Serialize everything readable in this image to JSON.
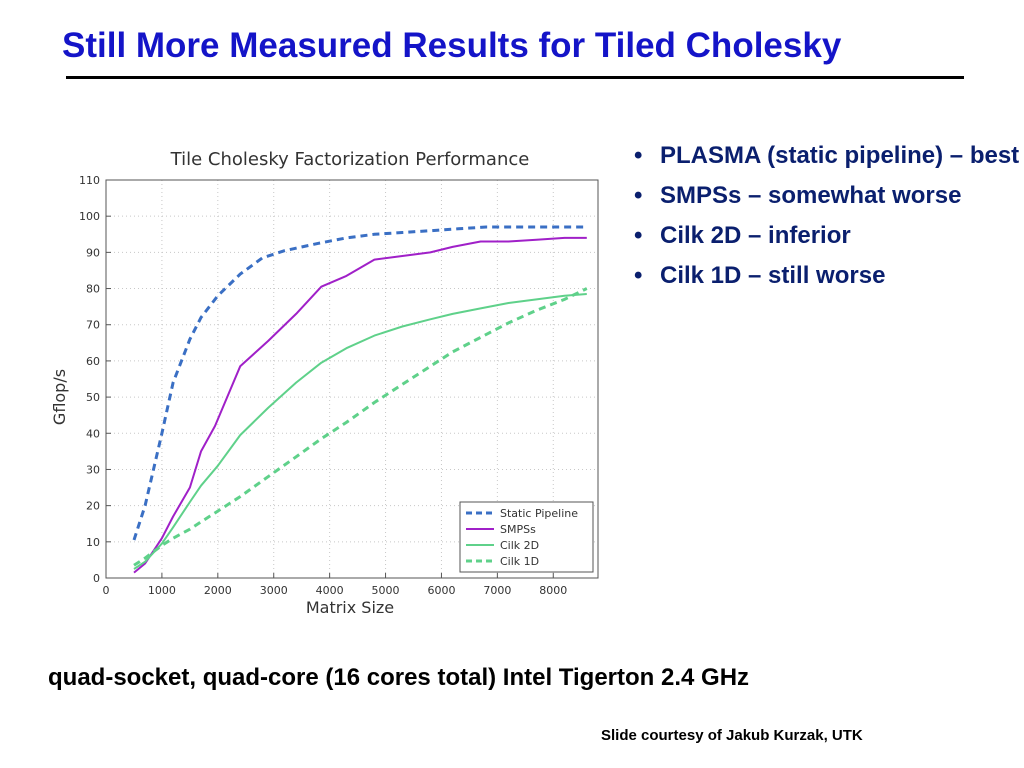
{
  "slide": {
    "title": "Still More Measured Results for Tiled Cholesky",
    "bullets": [
      "PLASMA (static pipeline) – best",
      "SMPSs – somewhat worse",
      "Cilk 2D – inferior",
      "Cilk 1D – still worse"
    ],
    "footnote": "quad-socket, quad-core (16 cores total) Intel Tigerton 2.4 GHz",
    "credit": "Slide courtesy of Jakub Kurzak, UTK"
  },
  "chart_data": {
    "type": "line",
    "title": "Tile Cholesky Factorization Performance",
    "xlabel": "Matrix Size",
    "ylabel": "Gflop/s",
    "xlim": [
      0,
      8800
    ],
    "ylim": [
      0,
      110
    ],
    "xticks": [
      0,
      1000,
      2000,
      3000,
      4000,
      5000,
      6000,
      7000,
      8000
    ],
    "yticks": [
      0,
      10,
      20,
      30,
      40,
      50,
      60,
      70,
      80,
      90,
      100,
      110
    ],
    "grid": true,
    "legend_position": "bottom-right",
    "series": [
      {
        "name": "Static Pipeline",
        "color": "#3a6fc4",
        "dash": true,
        "x": [
          500,
          700,
          1000,
          1200,
          1500,
          1700,
          2000,
          2400,
          2800,
          3200,
          3800,
          4300,
          4800,
          5300,
          5800,
          6300,
          6800,
          7200,
          7700,
          8200,
          8600
        ],
        "y": [
          10.5,
          20,
          40,
          54,
          66,
          72,
          78,
          84,
          88.5,
          90.5,
          92.5,
          94,
          95,
          95.5,
          96,
          96.5,
          97,
          97,
          97,
          97,
          97
        ]
      },
      {
        "name": "SMPSs",
        "color": "#a020c8",
        "dash": false,
        "x": [
          500,
          700,
          1000,
          1200,
          1500,
          1700,
          1950,
          2400,
          2900,
          3400,
          3850,
          4300,
          4800,
          5300,
          5800,
          6200,
          6700,
          7200,
          7700,
          8200,
          8600
        ],
        "y": [
          1.5,
          4,
          11,
          17,
          25,
          35,
          42,
          58.5,
          65.5,
          73,
          80.5,
          83.5,
          88,
          89,
          90,
          91.5,
          93,
          93,
          93.5,
          94,
          94
        ]
      },
      {
        "name": "Cilk 2D",
        "color": "#5fd18a",
        "dash": false,
        "x": [
          500,
          700,
          1000,
          1200,
          1500,
          1700,
          2000,
          2400,
          2900,
          3400,
          3850,
          4300,
          4800,
          5300,
          5800,
          6200,
          6700,
          7200,
          7700,
          8200,
          8600
        ],
        "y": [
          2.5,
          4.5,
          9.5,
          14,
          21,
          25.5,
          31,
          39.5,
          47,
          54,
          59.5,
          63.5,
          67,
          69.5,
          71.5,
          73,
          74.5,
          76,
          77,
          78,
          78.5
        ]
      },
      {
        "name": "Cilk 1D",
        "color": "#5fd18a",
        "dash": true,
        "x": [
          500,
          700,
          1000,
          1200,
          1500,
          1700,
          2000,
          2400,
          2900,
          3400,
          3850,
          4300,
          4800,
          5300,
          5800,
          6200,
          6700,
          7200,
          7700,
          8200,
          8600
        ],
        "y": [
          3.5,
          5.5,
          9,
          11,
          13.5,
          15.5,
          18.5,
          22.5,
          28,
          33.5,
          38.5,
          43,
          48.5,
          53.5,
          58.5,
          62.5,
          66.5,
          70.5,
          74,
          77,
          80
        ]
      }
    ]
  }
}
